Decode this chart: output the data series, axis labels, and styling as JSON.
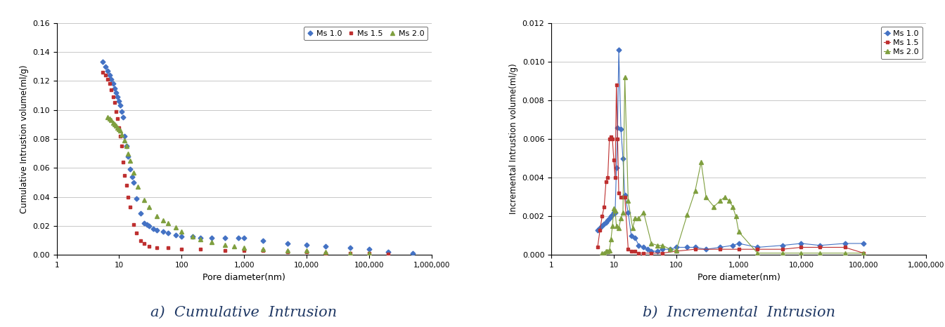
{
  "left_label": "a)  Cumulative  Intrusion",
  "right_label": "b)  Incremental  Intrusion",
  "left_ylabel": "Cumulative Intrustion volume(ml/g)",
  "right_ylabel": "Incremental Intrustion volume(ml/g)",
  "xlabel": "Pore diameter(nm)",
  "left_ylim": [
    0,
    0.16
  ],
  "right_ylim": [
    0,
    0.012
  ],
  "xlim": [
    1,
    1000000
  ],
  "colors": {
    "ms10": "#4472C4",
    "ms15": "#BE3030",
    "ms20": "#7F9F3F"
  },
  "ms10_cum_x": [
    5.5,
    6.0,
    6.5,
    7.0,
    7.5,
    8.0,
    8.5,
    9.0,
    9.5,
    10.0,
    10.5,
    11.0,
    11.5,
    12.0,
    13.0,
    14.0,
    15.0,
    16.0,
    17.0,
    19.0,
    22.0,
    25.0,
    28.0,
    30.0,
    35.0,
    40.0,
    50.0,
    60.0,
    80.0,
    100.0,
    150.0,
    200.0,
    300.0,
    500.0,
    800.0,
    1000.0,
    2000.0,
    5000.0,
    10000.0,
    20000.0,
    50000.0,
    100000.0,
    200000.0,
    500000.0
  ],
  "ms10_cum_y": [
    0.133,
    0.13,
    0.127,
    0.124,
    0.121,
    0.118,
    0.115,
    0.112,
    0.109,
    0.106,
    0.103,
    0.099,
    0.095,
    0.082,
    0.075,
    0.068,
    0.059,
    0.054,
    0.05,
    0.039,
    0.029,
    0.022,
    0.021,
    0.02,
    0.018,
    0.017,
    0.016,
    0.015,
    0.014,
    0.013,
    0.013,
    0.012,
    0.012,
    0.012,
    0.012,
    0.012,
    0.01,
    0.008,
    0.007,
    0.006,
    0.005,
    0.004,
    0.002,
    0.001
  ],
  "ms15_cum_x": [
    5.5,
    6.0,
    6.5,
    7.0,
    7.5,
    8.0,
    8.5,
    9.0,
    9.5,
    10.0,
    10.5,
    11.0,
    11.5,
    12.0,
    13.0,
    14.0,
    15.0,
    17.0,
    19.0,
    22.0,
    25.0,
    30.0,
    40.0,
    60.0,
    100.0,
    200.0,
    500.0,
    1000.0,
    2000.0,
    5000.0,
    10000.0,
    20000.0,
    50000.0,
    100000.0,
    200000.0
  ],
  "ms15_cum_y": [
    0.126,
    0.124,
    0.121,
    0.118,
    0.114,
    0.109,
    0.105,
    0.099,
    0.094,
    0.088,
    0.082,
    0.075,
    0.064,
    0.055,
    0.048,
    0.04,
    0.033,
    0.021,
    0.015,
    0.01,
    0.008,
    0.006,
    0.005,
    0.005,
    0.004,
    0.004,
    0.003,
    0.003,
    0.003,
    0.002,
    0.002,
    0.001,
    0.001,
    0.001,
    0.0005
  ],
  "ms20_cum_x": [
    6.5,
    7.0,
    7.5,
    8.0,
    8.5,
    9.0,
    9.5,
    10.0,
    10.5,
    11.0,
    12.0,
    13.0,
    14.0,
    15.0,
    17.0,
    20.0,
    25.0,
    30.0,
    40.0,
    50.0,
    60.0,
    80.0,
    100.0,
    150.0,
    200.0,
    300.0,
    500.0,
    700.0,
    1000.0,
    2000.0,
    5000.0,
    10000.0,
    20000.0,
    50000.0,
    100000.0
  ],
  "ms20_cum_y": [
    0.095,
    0.094,
    0.093,
    0.091,
    0.09,
    0.089,
    0.088,
    0.087,
    0.086,
    0.083,
    0.079,
    0.075,
    0.07,
    0.065,
    0.057,
    0.047,
    0.038,
    0.033,
    0.027,
    0.024,
    0.022,
    0.019,
    0.016,
    0.013,
    0.011,
    0.009,
    0.007,
    0.006,
    0.005,
    0.004,
    0.003,
    0.003,
    0.002,
    0.001,
    0.001
  ],
  "ms10_inc_x": [
    5.5,
    6.0,
    6.5,
    7.0,
    7.5,
    8.0,
    8.5,
    9.0,
    9.5,
    10.0,
    10.5,
    11.0,
    11.5,
    12.0,
    13.0,
    14.0,
    15.0,
    17.0,
    19.0,
    22.0,
    25.0,
    30.0,
    35.0,
    40.0,
    50.0,
    60.0,
    80.0,
    100.0,
    150.0,
    200.0,
    300.0,
    500.0,
    800.0,
    1000.0,
    2000.0,
    5000.0,
    10000.0,
    20000.0,
    50000.0,
    100000.0
  ],
  "ms10_inc_y": [
    0.0013,
    0.0014,
    0.0015,
    0.0016,
    0.0017,
    0.0018,
    0.0019,
    0.002,
    0.0021,
    0.0022,
    0.0022,
    0.0045,
    0.0066,
    0.0106,
    0.0065,
    0.005,
    0.0031,
    0.0022,
    0.001,
    0.0009,
    0.0005,
    0.0004,
    0.0003,
    0.0002,
    0.0002,
    0.0003,
    0.0003,
    0.0004,
    0.0004,
    0.0004,
    0.0003,
    0.0004,
    0.0005,
    0.0006,
    0.0004,
    0.0005,
    0.0006,
    0.0005,
    0.0006,
    0.0006
  ],
  "ms15_inc_x": [
    5.5,
    6.0,
    6.5,
    7.0,
    7.5,
    8.0,
    8.5,
    9.0,
    9.5,
    10.0,
    10.5,
    11.0,
    11.5,
    12.0,
    13.0,
    14.0,
    15.0,
    17.0,
    19.0,
    22.0,
    25.0,
    30.0,
    40.0,
    60.0,
    100.0,
    200.0,
    500.0,
    1000.0,
    2000.0,
    5000.0,
    10000.0,
    20000.0,
    50000.0,
    100000.0
  ],
  "ms15_inc_y": [
    0.0004,
    0.0013,
    0.002,
    0.0025,
    0.0038,
    0.004,
    0.006,
    0.0061,
    0.006,
    0.0049,
    0.004,
    0.0088,
    0.006,
    0.0032,
    0.003,
    0.003,
    0.003,
    0.0003,
    0.0002,
    0.0002,
    0.0001,
    0.0001,
    0.0001,
    0.0001,
    0.0002,
    0.0003,
    0.0003,
    0.0003,
    0.0003,
    0.0003,
    0.0004,
    0.0004,
    0.0004,
    0.0001
  ],
  "ms20_inc_x": [
    6.5,
    7.0,
    7.5,
    8.0,
    8.5,
    9.0,
    9.5,
    10.0,
    10.5,
    11.0,
    12.0,
    13.0,
    14.0,
    15.0,
    17.0,
    20.0,
    22.0,
    25.0,
    30.0,
    40.0,
    50.0,
    60.0,
    80.0,
    100.0,
    150.0,
    200.0,
    250.0,
    300.0,
    400.0,
    500.0,
    600.0,
    700.0,
    800.0,
    900.0,
    1000.0,
    2000.0,
    5000.0,
    10000.0,
    20000.0,
    50000.0,
    100000.0
  ],
  "ms20_inc_y": [
    0.0001,
    0.0001,
    0.0002,
    0.0002,
    0.00025,
    0.0008,
    0.0015,
    0.0024,
    0.0023,
    0.0015,
    0.0014,
    0.0019,
    0.0022,
    0.0092,
    0.0028,
    0.0014,
    0.0019,
    0.0019,
    0.0022,
    0.0006,
    0.0005,
    0.0005,
    0.0003,
    0.00025,
    0.0021,
    0.0033,
    0.0048,
    0.003,
    0.0025,
    0.0028,
    0.003,
    0.0028,
    0.0025,
    0.002,
    0.0012,
    0.0001,
    0.0001,
    0.0001,
    0.0001,
    0.0001,
    0.0001
  ]
}
